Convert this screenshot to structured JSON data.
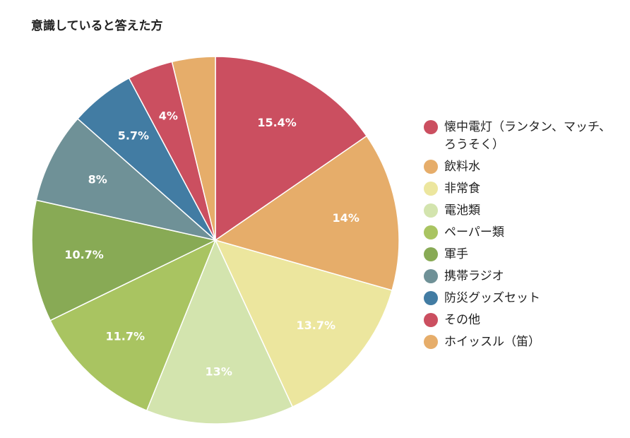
{
  "chart_data": {
    "type": "pie",
    "title": "意識していると答えた方",
    "slices": [
      {
        "name": "懐中電灯（ランタン、マッチ、ろうそく）",
        "value": 15.4,
        "label": "15.4%",
        "color": "#cb4f60"
      },
      {
        "name": "飲料水",
        "value": 14,
        "label": "14%",
        "color": "#e6ad6a"
      },
      {
        "name": "非常食",
        "value": 13.7,
        "label": "13.7%",
        "color": "#ece69e"
      },
      {
        "name": "電池類",
        "value": 13,
        "label": "13%",
        "color": "#d3e4ae"
      },
      {
        "name": "ペーパー類",
        "value": 11.7,
        "label": "11.7%",
        "color": "#a9c461"
      },
      {
        "name": "軍手",
        "value": 10.7,
        "label": "10.7%",
        "color": "#88aa55"
      },
      {
        "name": "携帯ラジオ",
        "value": 8,
        "label": "8%",
        "color": "#6f9197"
      },
      {
        "name": "防災グッズセット",
        "value": 5.7,
        "label": "5.7%",
        "color": "#427ca3"
      },
      {
        "name": "その他",
        "value": 4,
        "label": "4%",
        "color": "#cb4f60"
      },
      {
        "name": "ホイッスル（笛）",
        "value": 3.8,
        "label": "",
        "color": "#e6ad6a"
      }
    ],
    "legend_position": "right"
  }
}
